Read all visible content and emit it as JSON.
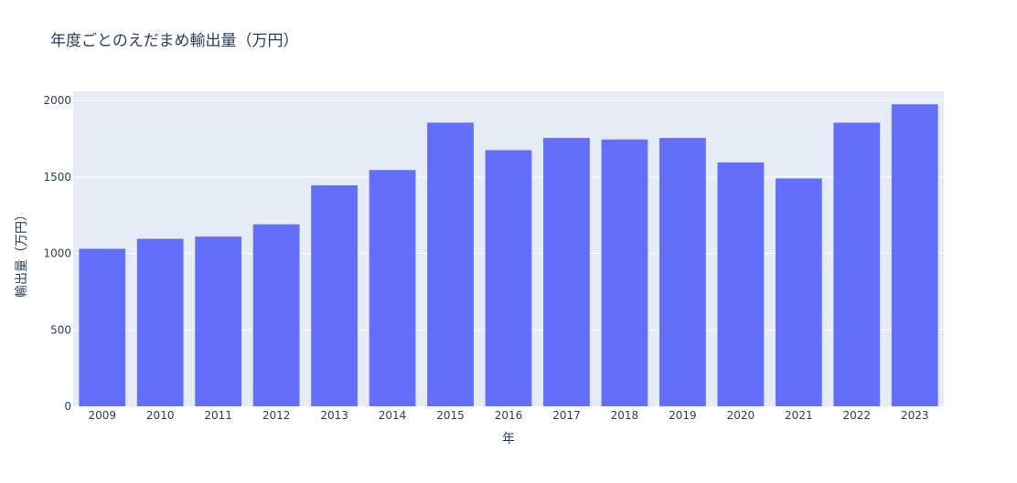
{
  "chart_data": {
    "type": "bar",
    "title": "年度ごとのえだまめ輸出量（万円）",
    "xlabel": "年",
    "ylabel": "輸出量（万円）",
    "categories": [
      "2009",
      "2010",
      "2011",
      "2012",
      "2013",
      "2014",
      "2015",
      "2016",
      "2017",
      "2018",
      "2019",
      "2020",
      "2021",
      "2022",
      "2023"
    ],
    "values": [
      1030,
      1095,
      1110,
      1190,
      1445,
      1545,
      1855,
      1675,
      1755,
      1745,
      1755,
      1595,
      1490,
      1855,
      1975
    ],
    "yticks": [
      0,
      500,
      1000,
      1500,
      2000
    ],
    "ylim": [
      0,
      2060
    ],
    "grid": true,
    "legend": "none",
    "colors": {
      "bar": "#636efa",
      "plot_bg": "#e5ecf6",
      "grid": "#ffffff",
      "text": "#2a3f5f"
    }
  }
}
